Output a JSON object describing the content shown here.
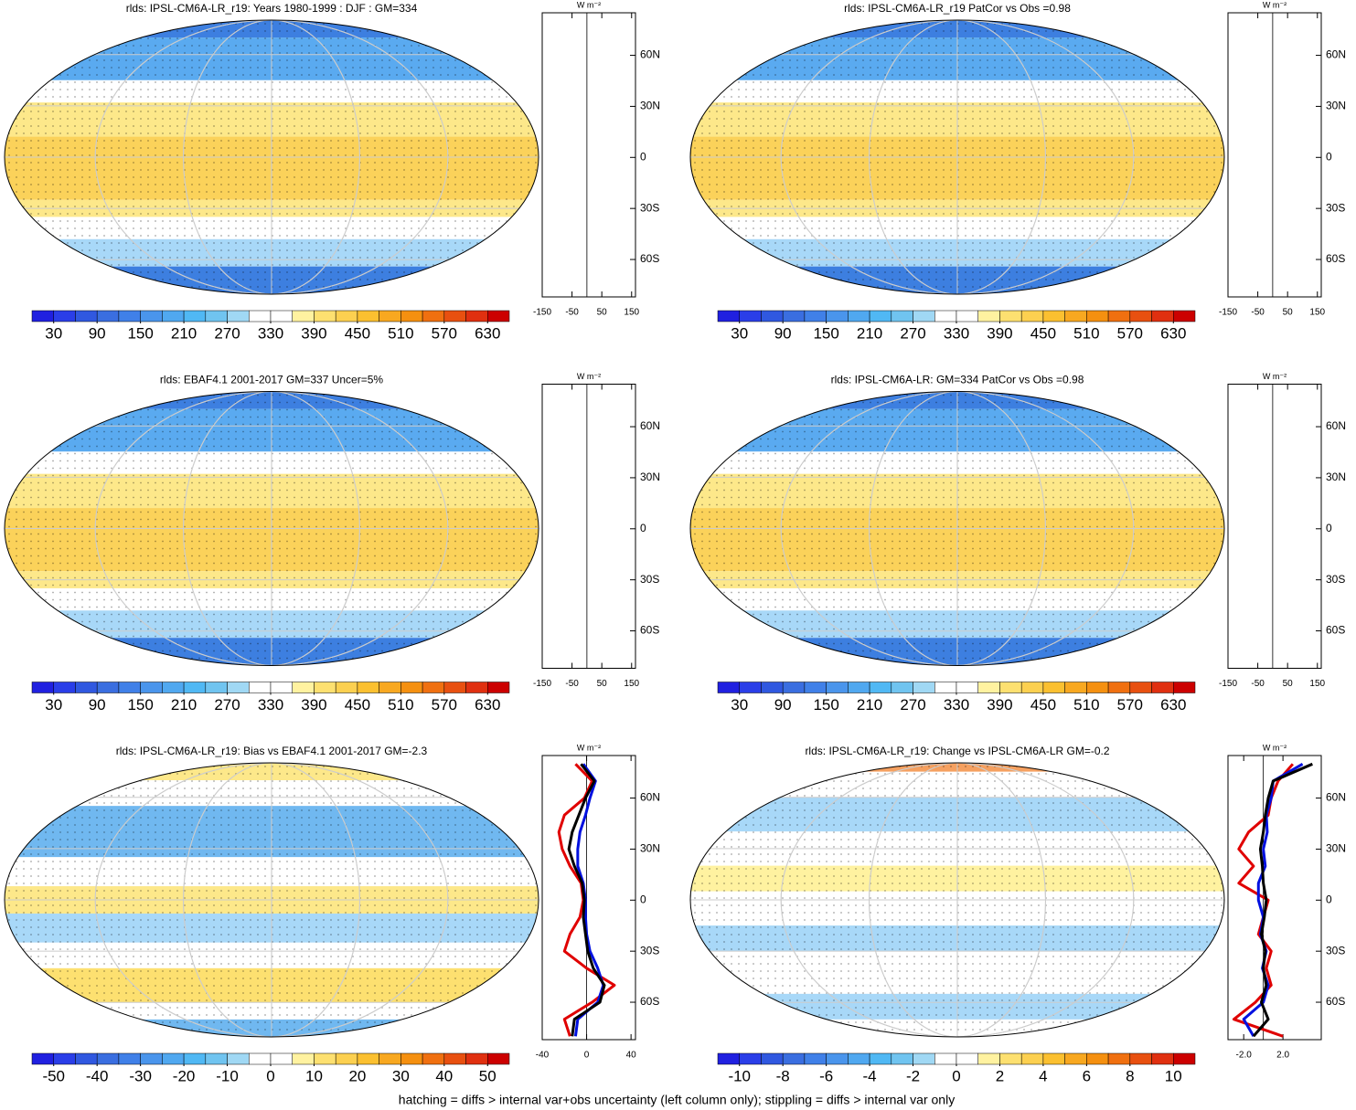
{
  "chart_data": [
    {
      "type": "map",
      "title": "rlds: IPSL-CM6A-LR_r19: Years 1980-1999 : DJF : GM=334",
      "field": "abs",
      "colorbar": {
        "xlim": [
          0,
          660
        ],
        "xticks": [
          30,
          90,
          150,
          210,
          270,
          330,
          390,
          450,
          510,
          570,
          630
        ],
        "colors": [
          "#2020e0",
          "#2a3ee8",
          "#3058e0",
          "#3a6ee0",
          "#4080e8",
          "#4a95ec",
          "#50a8f0",
          "#50b8f4",
          "#70c4f0",
          "#a0d8f4",
          "#ffffff",
          "#ffffff",
          "#fff2a0",
          "#fde070",
          "#fcd050",
          "#fbc030",
          "#f8a820",
          "#f59010",
          "#f07010",
          "#e85010",
          "#e03010",
          "#cc0000"
        ]
      },
      "profile": {
        "unit": "W m⁻²",
        "xlim": [
          -150,
          163
        ],
        "xticks": [
          -150,
          -50,
          50,
          150
        ],
        "ylim": [
          -82,
          85
        ],
        "yticks": [
          {
            "value": 60,
            "label": "60N"
          },
          {
            "value": 30,
            "label": "30N"
          },
          0,
          {
            "value": -30,
            "label": "30S"
          },
          {
            "value": -60,
            "label": "60S"
          }
        ]
      }
    },
    {
      "type": "map",
      "title": "rlds: IPSL-CM6A-LR_r19 PatCor vs Obs =0.98",
      "field": "abs",
      "colorbar": {
        "xlim": [
          0,
          660
        ],
        "xticks": [
          30,
          90,
          150,
          210,
          270,
          330,
          390,
          450,
          510,
          570,
          630
        ],
        "colors": [
          "#2020e0",
          "#2a3ee8",
          "#3058e0",
          "#3a6ee0",
          "#4080e8",
          "#4a95ec",
          "#50a8f0",
          "#50b8f4",
          "#70c4f0",
          "#a0d8f4",
          "#ffffff",
          "#ffffff",
          "#fff2a0",
          "#fde070",
          "#fcd050",
          "#fbc030",
          "#f8a820",
          "#f59010",
          "#f07010",
          "#e85010",
          "#e03010",
          "#cc0000"
        ]
      },
      "profile": {
        "unit": "W m⁻²",
        "xlim": [
          -150,
          163
        ],
        "xticks": [
          -150,
          -50,
          50,
          150
        ],
        "ylim": [
          -82,
          85
        ],
        "yticks": [
          {
            "value": 60,
            "label": "60N"
          },
          {
            "value": 30,
            "label": "30N"
          },
          0,
          {
            "value": -30,
            "label": "30S"
          },
          {
            "value": -60,
            "label": "60S"
          }
        ]
      }
    },
    {
      "type": "map",
      "title": "rlds: EBAF4.1 2001-2017 GM=337 Uncer=5%",
      "field": "abs",
      "colorbar": {
        "xlim": [
          0,
          660
        ],
        "xticks": [
          30,
          90,
          150,
          210,
          270,
          330,
          390,
          450,
          510,
          570,
          630
        ],
        "colors": [
          "#2020e0",
          "#2a3ee8",
          "#3058e0",
          "#3a6ee0",
          "#4080e8",
          "#4a95ec",
          "#50a8f0",
          "#50b8f4",
          "#70c4f0",
          "#a0d8f4",
          "#ffffff",
          "#ffffff",
          "#fff2a0",
          "#fde070",
          "#fcd050",
          "#fbc030",
          "#f8a820",
          "#f59010",
          "#f07010",
          "#e85010",
          "#e03010",
          "#cc0000"
        ]
      },
      "profile": {
        "unit": "W m⁻²",
        "xlim": [
          -150,
          163
        ],
        "xticks": [
          -150,
          -50,
          50,
          150
        ],
        "ylim": [
          -82,
          85
        ],
        "yticks": [
          {
            "value": 60,
            "label": "60N"
          },
          {
            "value": 30,
            "label": "30N"
          },
          0,
          {
            "value": -30,
            "label": "30S"
          },
          {
            "value": -60,
            "label": "60S"
          }
        ]
      }
    },
    {
      "type": "map",
      "title": "rlds: IPSL-CM6A-LR: GM=334 PatCor vs Obs =0.98",
      "field": "abs",
      "colorbar": {
        "xlim": [
          0,
          660
        ],
        "xticks": [
          30,
          90,
          150,
          210,
          270,
          330,
          390,
          450,
          510,
          570,
          630
        ],
        "colors": [
          "#2020e0",
          "#2a3ee8",
          "#3058e0",
          "#3a6ee0",
          "#4080e8",
          "#4a95ec",
          "#50a8f0",
          "#50b8f4",
          "#70c4f0",
          "#a0d8f4",
          "#ffffff",
          "#ffffff",
          "#fff2a0",
          "#fde070",
          "#fcd050",
          "#fbc030",
          "#f8a820",
          "#f59010",
          "#f07010",
          "#e85010",
          "#e03010",
          "#cc0000"
        ]
      },
      "profile": {
        "unit": "W m⁻²",
        "xlim": [
          -150,
          163
        ],
        "xticks": [
          -150,
          -50,
          50,
          150
        ],
        "ylim": [
          -82,
          85
        ],
        "yticks": [
          {
            "value": 60,
            "label": "60N"
          },
          {
            "value": 30,
            "label": "30N"
          },
          0,
          {
            "value": -30,
            "label": "30S"
          },
          {
            "value": -60,
            "label": "60S"
          }
        ]
      }
    },
    {
      "type": "map",
      "title": "rlds: IPSL-CM6A-LR_r19: Bias vs EBAF4.1 2001-2017 GM=-2.3",
      "field": "bias",
      "colorbar": {
        "xlim": [
          -55,
          55
        ],
        "xticks": [
          -50,
          -40,
          -30,
          -20,
          -10,
          0,
          10,
          20,
          30,
          40,
          50
        ],
        "colors": [
          "#2020e0",
          "#2a3ee8",
          "#3058e0",
          "#3a6ee0",
          "#4080e8",
          "#4a95ec",
          "#50a8f0",
          "#50b8f4",
          "#70c4f0",
          "#a0d8f4",
          "#ffffff",
          "#ffffff",
          "#fff2a0",
          "#fde070",
          "#fcd050",
          "#fbc030",
          "#f8a820",
          "#f59010",
          "#f07010",
          "#e85010",
          "#e03010",
          "#cc0000"
        ]
      },
      "profile": {
        "unit": "W m⁻²",
        "xlim": [
          -40,
          44
        ],
        "xticks": [
          -40,
          0,
          40
        ],
        "ylim": [
          -82,
          85
        ],
        "yticks": [
          {
            "value": 60,
            "label": "60N"
          },
          {
            "value": 30,
            "label": "30N"
          },
          0,
          {
            "value": -30,
            "label": "30S"
          },
          {
            "value": -60,
            "label": "60S"
          }
        ],
        "lats": [
          80,
          70,
          60,
          50,
          40,
          30,
          20,
          10,
          0,
          -10,
          -20,
          -30,
          -40,
          -50,
          -60,
          -70,
          -80
        ],
        "series": [
          {
            "color": "#e00000",
            "values": [
              -10,
              5,
              -2,
              -20,
              -25,
              -22,
              -15,
              -5,
              -3,
              -6,
              -15,
              -20,
              0,
              25,
              5,
              -20,
              -15
            ]
          },
          {
            "color": "#0010e0",
            "values": [
              -3,
              8,
              3,
              -1,
              -6,
              -8,
              -8,
              -3,
              -1,
              -1,
              0,
              3,
              10,
              15,
              10,
              -8,
              -10
            ]
          },
          {
            "color": "#000000",
            "values": [
              -5,
              7,
              -1,
              -7,
              -13,
              -16,
              -11,
              -4,
              -2,
              -3,
              -1,
              1,
              6,
              16,
              12,
              -11,
              -13
            ]
          }
        ]
      }
    },
    {
      "type": "map",
      "title": "rlds: IPSL-CM6A-LR_r19: Change vs IPSL-CM6A-LR GM=-0.2",
      "field": "change",
      "colorbar": {
        "xlim": [
          -11,
          11
        ],
        "xticks": [
          -10,
          -8,
          -6,
          -4,
          -2,
          0,
          2,
          4,
          6,
          8,
          10
        ],
        "colors": [
          "#2020e0",
          "#2a3ee8",
          "#3058e0",
          "#3a6ee0",
          "#4080e8",
          "#4a95ec",
          "#50a8f0",
          "#50b8f4",
          "#70c4f0",
          "#a0d8f4",
          "#ffffff",
          "#ffffff",
          "#fff2a0",
          "#fde070",
          "#fcd050",
          "#fbc030",
          "#f8a820",
          "#f59010",
          "#f07010",
          "#e85010",
          "#e03010",
          "#cc0000"
        ]
      },
      "profile": {
        "unit": "W m⁻²",
        "xlim": [
          -3.6,
          5.9
        ],
        "xticks": [
          {
            "value": -2,
            "label": "-2.0"
          },
          {
            "value": 2,
            "label": "2.0"
          }
        ],
        "ylim": [
          -82,
          85
        ],
        "yticks": [
          {
            "value": 60,
            "label": "60N"
          },
          {
            "value": 30,
            "label": "30N"
          },
          0,
          {
            "value": -30,
            "label": "30S"
          },
          {
            "value": -60,
            "label": "60S"
          }
        ],
        "lats": [
          80,
          70,
          60,
          50,
          40,
          30,
          20,
          10,
          0,
          -10,
          -20,
          -30,
          -40,
          -50,
          -60,
          -70,
          -80
        ],
        "series": [
          {
            "color": "#e00000",
            "values": [
              3,
              1.5,
              0.8,
              0.5,
              -1.5,
              -2.5,
              -1,
              -2.5,
              0.5,
              0,
              -0.5,
              0.8,
              0.3,
              0.8,
              -0.8,
              -3,
              2
            ]
          },
          {
            "color": "#0010e0",
            "values": [
              4,
              1,
              0.8,
              0.3,
              0.4,
              0,
              0.2,
              -0.5,
              -0.5,
              0,
              -0.3,
              0.3,
              -0.1,
              0.5,
              0,
              -2,
              -1
            ]
          },
          {
            "color": "#000000",
            "values": [
              5,
              1,
              0.5,
              0.2,
              0,
              -0.3,
              -0.1,
              0,
              0.3,
              0.1,
              -0.2,
              0.2,
              0,
              0.3,
              -0.2,
              0.5,
              -1
            ]
          }
        ]
      }
    }
  ],
  "footer": "hatching = diffs > internal var+obs uncertainty (left column only); stippling = diffs > internal var only"
}
